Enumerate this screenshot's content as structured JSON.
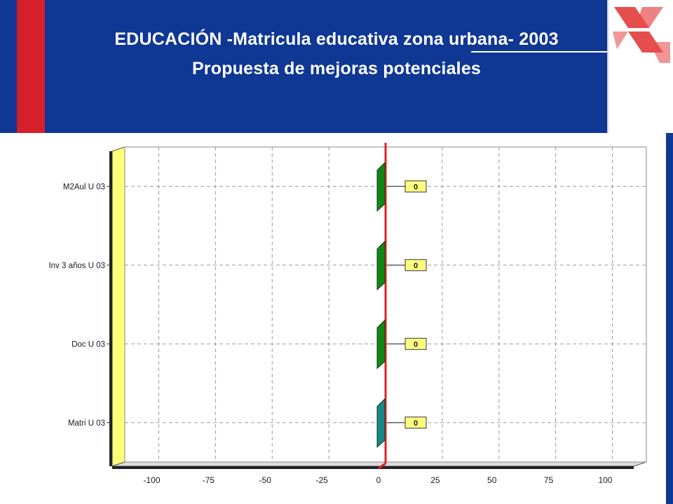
{
  "header": {
    "title_line1": "EDUCACIÓN  -Matricula educativa zona urbana- 2003",
    "title_line2": "Propuesta de mejoras potenciales"
  },
  "colors": {
    "header_bg": "#0f3794",
    "accent_red": "#d51f2a",
    "zero_line": "#e02020",
    "bar_green": "#0e8a14",
    "bar_teal": "#128a8a",
    "label_box": "#ffff80",
    "left_wall": "#ffff7a"
  },
  "chart_data": {
    "type": "bar",
    "orientation": "horizontal",
    "categories": [
      "M2Aul U 03",
      "Inv 3 años U 03",
      "Doc U 03",
      "Matri U 03"
    ],
    "values": [
      0,
      0,
      0,
      0
    ],
    "value_labels": [
      "0",
      "0",
      "0",
      "0"
    ],
    "xlim": [
      -115,
      115
    ],
    "x_ticks": [
      -100,
      -75,
      -50,
      -25,
      0,
      25,
      50,
      75,
      100
    ],
    "grid": true,
    "reference_line": 0
  }
}
